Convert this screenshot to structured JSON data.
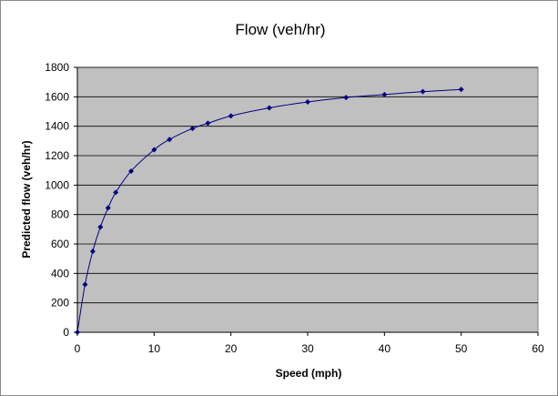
{
  "chart_data": {
    "type": "scatter",
    "title": "Flow (veh/hr)",
    "xlabel": "Speed (mph)",
    "ylabel": "Predicted flow (veh/hr)",
    "xlim": [
      0,
      60
    ],
    "ylim": [
      0,
      1800
    ],
    "xticks": [
      0,
      10,
      20,
      30,
      40,
      50,
      60
    ],
    "yticks": [
      0,
      200,
      400,
      600,
      800,
      1000,
      1200,
      1400,
      1600,
      1800
    ],
    "grid": "horizontal",
    "legend": "none",
    "colors": {
      "plot_bg": "#c0c0c0",
      "series": "#000080",
      "grid": "#000000"
    },
    "series": [
      {
        "x": [
          0,
          1,
          2,
          3,
          4,
          5,
          7,
          10,
          12,
          15,
          17,
          20,
          25,
          30,
          35,
          40,
          45,
          50
        ],
        "y": [
          0,
          325,
          550,
          715,
          845,
          950,
          1095,
          1240,
          1310,
          1385,
          1420,
          1470,
          1525,
          1565,
          1595,
          1615,
          1635,
          1650
        ]
      }
    ]
  }
}
